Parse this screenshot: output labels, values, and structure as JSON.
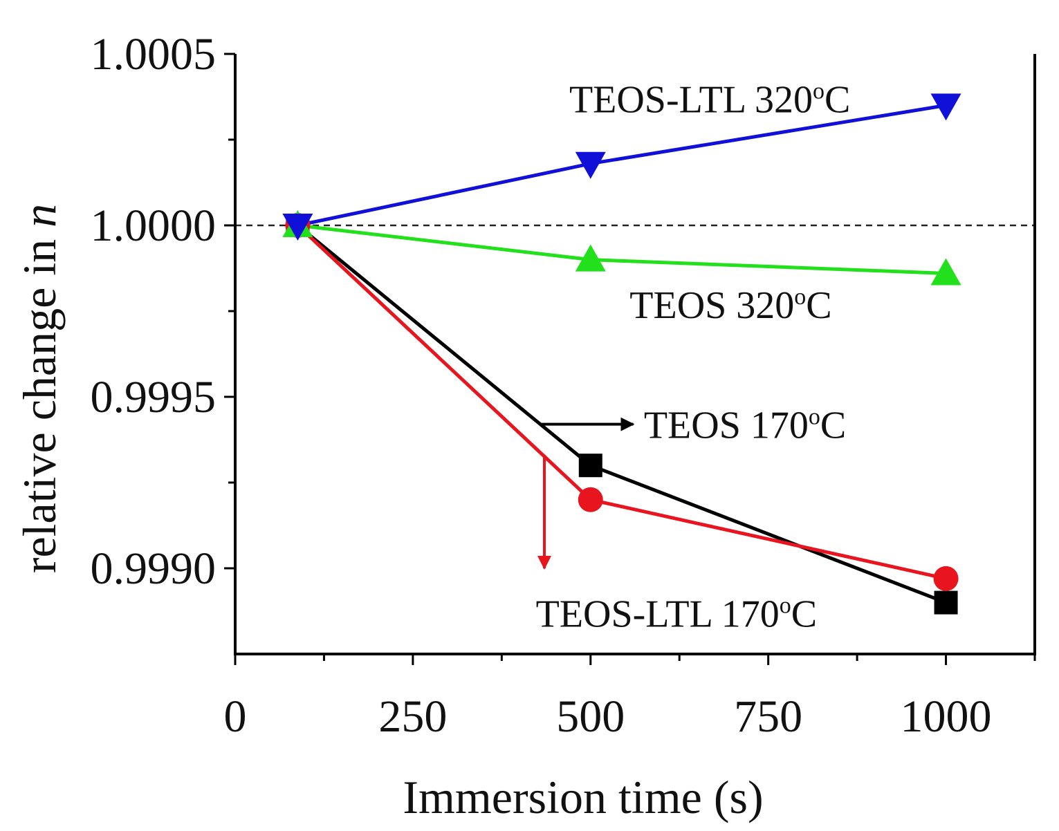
{
  "chart_data": {
    "type": "line",
    "title": "",
    "xlabel": "Immersion time (s)",
    "ylabel_main": "relative change in ",
    "ylabel_var": "n",
    "xlim": [
      0,
      1125
    ],
    "ylim": [
      0.99875,
      1.0005
    ],
    "x_ticks": [
      {
        "value": 0,
        "label": "0"
      },
      {
        "value": 250,
        "label": "250"
      },
      {
        "value": 500,
        "label": "500"
      },
      {
        "value": 750,
        "label": "750"
      },
      {
        "value": 1000,
        "label": "1000"
      }
    ],
    "x_minor_ticks": [
      125,
      375,
      625,
      875,
      1125
    ],
    "y_ticks": [
      {
        "value": 1.0005,
        "label": "1.0005"
      },
      {
        "value": 1.0,
        "label": "1.0000"
      },
      {
        "value": 0.9995,
        "label": "0.9995"
      },
      {
        "value": 0.999,
        "label": "0.9990"
      }
    ],
    "y_minor_ticks": [
      1.00025,
      0.99975,
      0.99925
    ],
    "reference_line": {
      "y": 1.0,
      "style": "dashed"
    },
    "series": [
      {
        "name": "TEOS 170°C",
        "color": "#000000",
        "marker": "square",
        "x": [
          88,
          500,
          1000
        ],
        "y": [
          1.0,
          0.9993,
          0.9989
        ]
      },
      {
        "name": "TEOS-LTL 170°C",
        "color": "#e8141e",
        "marker": "circle",
        "x": [
          88,
          500,
          1000
        ],
        "y": [
          1.0,
          0.9992,
          0.99897
        ]
      },
      {
        "name": "TEOS 320°C",
        "color": "#22e01c",
        "marker": "triangle-up",
        "x": [
          88,
          500,
          1000
        ],
        "y": [
          1.0,
          0.9999,
          0.99986
        ]
      },
      {
        "name": "TEOS-LTL 320°C",
        "color": "#1010d8",
        "marker": "triangle-down",
        "x": [
          88,
          500,
          1000
        ],
        "y": [
          1.0,
          1.00018,
          1.00035
        ]
      }
    ],
    "annotations": [
      {
        "series": "TEOS-LTL 320°C",
        "main": "TEOS-LTL 320",
        "sup": "o",
        "unit": "C",
        "x": 470,
        "y": 1.00033
      },
      {
        "series": "TEOS 320°C",
        "main": "TEOS 320",
        "sup": "o",
        "unit": "C",
        "x": 555,
        "y": 0.99973
      },
      {
        "series": "TEOS 170°C",
        "main": "TEOS 170",
        "sup": "o",
        "unit": "C",
        "x": 575,
        "y": 0.99938
      },
      {
        "series": "TEOS-LTL 170°C",
        "main": "TEOS-LTL 170",
        "sup": "o",
        "unit": "C",
        "x": 423,
        "y": 0.99883
      }
    ],
    "arrows": [
      {
        "color": "#000000",
        "from": [
          430,
          0.99942
        ],
        "to": [
          560,
          0.99942
        ]
      },
      {
        "color": "#e8141e",
        "from": [
          435,
          0.99933
        ],
        "to": [
          435,
          0.999
        ]
      }
    ]
  }
}
